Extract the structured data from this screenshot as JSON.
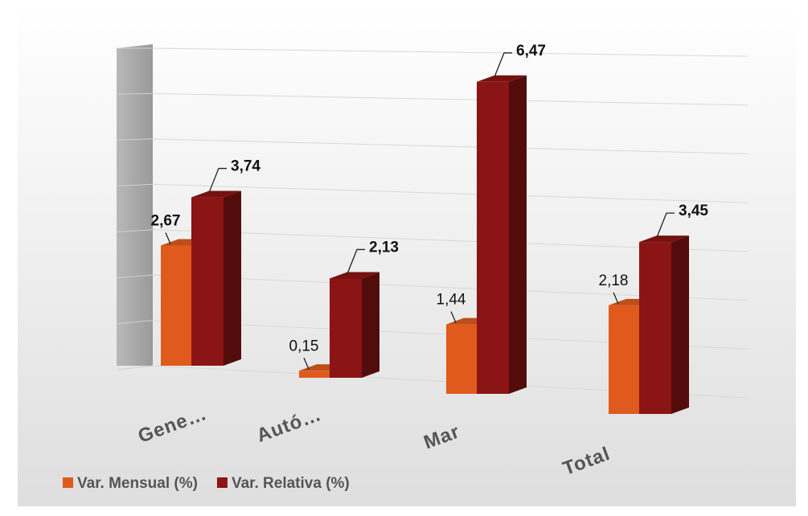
{
  "chart_data": {
    "type": "bar",
    "categories": [
      "Gene…",
      "Autó…",
      "Mar",
      "Total"
    ],
    "series": [
      {
        "name": "Var. Mensual (%)",
        "color": "#e05a1e",
        "values": [
          2.67,
          0.15,
          1.44,
          2.18
        ],
        "value_labels": [
          "2,67",
          "0,15",
          "1,44",
          "2,18"
        ]
      },
      {
        "name": "Var. Relativa (%)",
        "color": "#8b1414",
        "values": [
          3.74,
          2.13,
          6.47,
          3.45
        ],
        "value_labels": [
          "3,74",
          "2,13",
          "6,47",
          "3,45"
        ]
      }
    ],
    "ylim": [
      0,
      7
    ],
    "yticks": [
      0,
      1,
      2,
      3,
      4,
      5,
      6,
      7
    ],
    "grid": true
  }
}
